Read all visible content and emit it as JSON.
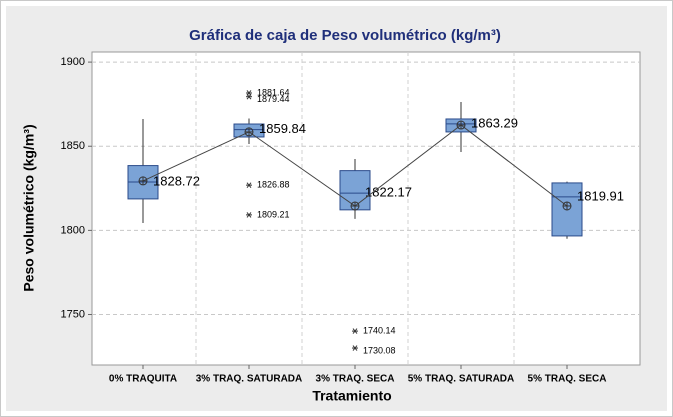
{
  "chart_data": {
    "type": "box",
    "title": "Gráfica de caja de Peso volumétrico (kg/m³)",
    "x_label": "Tratamiento",
    "y_label": "Peso volumétrico (kg/m³)",
    "categories": [
      "0% TRAQUITA",
      "3% TRAQ. SATURADA",
      "3% TRAQ. SECA",
      "5% TRAQ. SATURADA",
      "5% TRAQ. SECA"
    ],
    "color": "#7ba3d6",
    "grid": true,
    "ylim": [
      1720,
      1906
    ],
    "yticks": [
      1750,
      1800,
      1850,
      1900
    ],
    "boxes": [
      {
        "whisker_low": 1804.4,
        "q1": 1818.7,
        "median": 1828.72,
        "q3": 1838.5,
        "whisker_high": 1866.2,
        "mean": 1829.4,
        "outliers": []
      },
      {
        "whisker_low": 1851.3,
        "q1": 1855.5,
        "median": 1859.84,
        "q3": 1863.2,
        "whisker_high": 1866.5,
        "mean": 1858.5,
        "outliers": [
          1881.64,
          1879.44,
          1826.88,
          1809.21
        ]
      },
      {
        "whisker_low": 1806.8,
        "q1": 1812.2,
        "median": 1822.17,
        "q3": 1835.5,
        "whisker_high": 1842.4,
        "mean": 1814.5,
        "outliers": [
          1740.14,
          1730.08
        ]
      },
      {
        "whisker_low": 1846.6,
        "q1": 1858.5,
        "median": 1863.29,
        "q3": 1866.2,
        "whisker_high": 1876.3,
        "mean": 1862.6,
        "outliers": []
      },
      {
        "whisker_low": 1795.0,
        "q1": 1796.7,
        "median": 1819.91,
        "q3": 1828.2,
        "whisker_high": 1829.0,
        "mean": 1814.5,
        "outliers": []
      }
    ]
  }
}
